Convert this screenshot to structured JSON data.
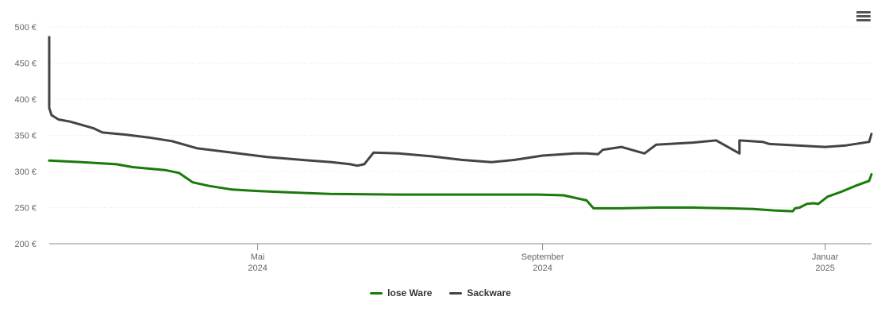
{
  "colors": {
    "series_lose": "#1a7a0a",
    "series_sack": "#444444"
  },
  "menu": {
    "icon": "hamburger-menu-icon"
  },
  "chart_data": {
    "type": "line",
    "y_ticks": [
      "200 €",
      "250 €",
      "300 €",
      "350 €",
      "400 €",
      "450 €",
      "500 €"
    ],
    "ylim": [
      200,
      500
    ],
    "xlim": [
      "2024-02-01",
      "2025-01-21"
    ],
    "x_ticks": [
      {
        "date": "2024-05-01",
        "line1": "Mai",
        "line2": "2024"
      },
      {
        "date": "2024-09-01",
        "line1": "September",
        "line2": "2024"
      },
      {
        "date": "2025-01-01",
        "line1": "Januar",
        "line2": "2025"
      }
    ],
    "grid": true,
    "legend_position": "bottom-center",
    "series": [
      {
        "name": "lose Ware",
        "color": "#1a7a0a",
        "points": [
          [
            "2024-02-01",
            315
          ],
          [
            "2024-02-15",
            313
          ],
          [
            "2024-03-01",
            310
          ],
          [
            "2024-03-08",
            306
          ],
          [
            "2024-03-15",
            304
          ],
          [
            "2024-03-22",
            302
          ],
          [
            "2024-03-28",
            298
          ],
          [
            "2024-04-03",
            285
          ],
          [
            "2024-04-10",
            280
          ],
          [
            "2024-04-20",
            275
          ],
          [
            "2024-05-01",
            273
          ],
          [
            "2024-05-15",
            271
          ],
          [
            "2024-06-01",
            269
          ],
          [
            "2024-07-01",
            268
          ],
          [
            "2024-08-01",
            268
          ],
          [
            "2024-08-30",
            268
          ],
          [
            "2024-09-10",
            267
          ],
          [
            "2024-09-20",
            260
          ],
          [
            "2024-09-23",
            249
          ],
          [
            "2024-10-05",
            249
          ],
          [
            "2024-10-20",
            250
          ],
          [
            "2024-11-05",
            250
          ],
          [
            "2024-11-20",
            249
          ],
          [
            "2024-12-01",
            248
          ],
          [
            "2024-12-10",
            246
          ],
          [
            "2024-12-18",
            245
          ],
          [
            "2024-12-19",
            249
          ],
          [
            "2024-12-21",
            250
          ],
          [
            "2024-12-24",
            255
          ],
          [
            "2024-12-27",
            256
          ],
          [
            "2024-12-29",
            255
          ],
          [
            "2025-01-02",
            265
          ],
          [
            "2025-01-08",
            272
          ],
          [
            "2025-01-14",
            280
          ],
          [
            "2025-01-20",
            287
          ],
          [
            "2025-01-21",
            296
          ]
        ]
      },
      {
        "name": "Sackware",
        "color": "#444444",
        "points": [
          [
            "2024-02-01",
            486
          ],
          [
            "2024-02-01",
            388
          ],
          [
            "2024-02-02",
            378
          ],
          [
            "2024-02-05",
            372
          ],
          [
            "2024-02-10",
            369
          ],
          [
            "2024-02-20",
            360
          ],
          [
            "2024-02-24",
            354
          ],
          [
            "2024-03-05",
            351
          ],
          [
            "2024-03-15",
            347
          ],
          [
            "2024-03-25",
            342
          ],
          [
            "2024-04-05",
            332
          ],
          [
            "2024-04-20",
            326
          ],
          [
            "2024-05-05",
            320
          ],
          [
            "2024-05-20",
            316
          ],
          [
            "2024-06-02",
            313
          ],
          [
            "2024-06-10",
            310
          ],
          [
            "2024-06-13",
            308
          ],
          [
            "2024-06-16",
            310
          ],
          [
            "2024-06-20",
            326
          ],
          [
            "2024-07-01",
            325
          ],
          [
            "2024-07-15",
            321
          ],
          [
            "2024-07-28",
            316
          ],
          [
            "2024-08-10",
            313
          ],
          [
            "2024-08-20",
            316
          ],
          [
            "2024-09-01",
            322
          ],
          [
            "2024-09-15",
            325
          ],
          [
            "2024-10-15",
            325
          ],
          [
            "2024-11-25",
            325
          ],
          [
            "2024-09-20",
            325
          ],
          [
            "2024-09-25",
            324
          ],
          [
            "2024-09-27",
            330
          ],
          [
            "2024-10-05",
            334
          ],
          [
            "2024-10-20",
            337
          ],
          [
            "2024-11-05",
            340
          ],
          [
            "2024-11-15",
            343
          ],
          [
            "2024-11-25",
            343
          ],
          [
            "2024-12-05",
            341
          ],
          [
            "2024-12-08",
            338
          ],
          [
            "2024-12-20",
            336
          ],
          [
            "2025-01-01",
            334
          ],
          [
            "2025-01-10",
            336
          ],
          [
            "2025-01-20",
            341
          ],
          [
            "2025-01-21",
            352
          ]
        ]
      }
    ]
  }
}
